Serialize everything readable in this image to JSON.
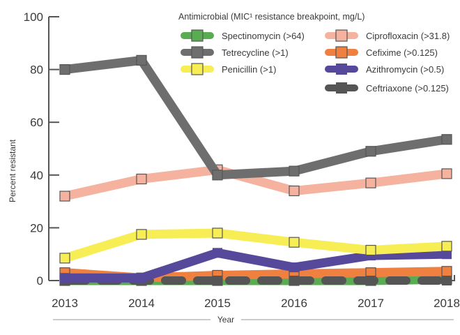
{
  "chart_data": {
    "type": "line",
    "title": "",
    "xlabel": "Year",
    "ylabel": "Percent resistant",
    "x": [
      "2013",
      "2014",
      "2015",
      "2016",
      "2017",
      "2018"
    ],
    "ylim": [
      0,
      100
    ],
    "yticks": [
      "0",
      "20",
      "40",
      "60",
      "80",
      "100"
    ],
    "ytick_values": [
      0,
      20,
      40,
      60,
      80,
      100
    ],
    "grid": false,
    "legend_title": "Antimicrobial (MIC¹ resistance breakpoint, mg/L)",
    "legend_position": "top-right",
    "series": [
      {
        "name": "Spectinomycin (>64)",
        "color": "#5aac52",
        "marker": "square",
        "values": [
          0,
          0,
          0,
          0,
          0,
          0.5
        ]
      },
      {
        "name": "Tetrecycline (>1)",
        "color": "#6e6e6e",
        "marker": "square",
        "values": [
          80,
          83.5,
          40,
          41.5,
          49,
          53.5
        ]
      },
      {
        "name": "Penicillin (>1)",
        "color": "#f7ee55",
        "marker": "square",
        "values": [
          8.5,
          17.5,
          18,
          14.5,
          11.5,
          13
        ]
      },
      {
        "name": "Ciprofloxacin (>31.8)",
        "color": "#f4b29f",
        "marker": "square",
        "values": [
          32,
          38.5,
          42,
          34,
          37,
          40.5
        ]
      },
      {
        "name": "Cefixime (>0.125)",
        "color": "#ef8040",
        "marker": "square",
        "values": [
          3,
          1,
          2,
          2.5,
          3,
          3.5
        ]
      },
      {
        "name": "Azithromycin (>0.5)",
        "color": "#56489a",
        "marker": "none",
        "values": [
          1,
          1,
          10.5,
          5,
          9.5,
          10
        ]
      },
      {
        "name": "Ceftriaxone (>0.125)",
        "color": "#555555",
        "marker": "none",
        "dashed": true,
        "values": [
          0,
          0,
          0,
          0,
          0,
          0
        ]
      }
    ]
  }
}
